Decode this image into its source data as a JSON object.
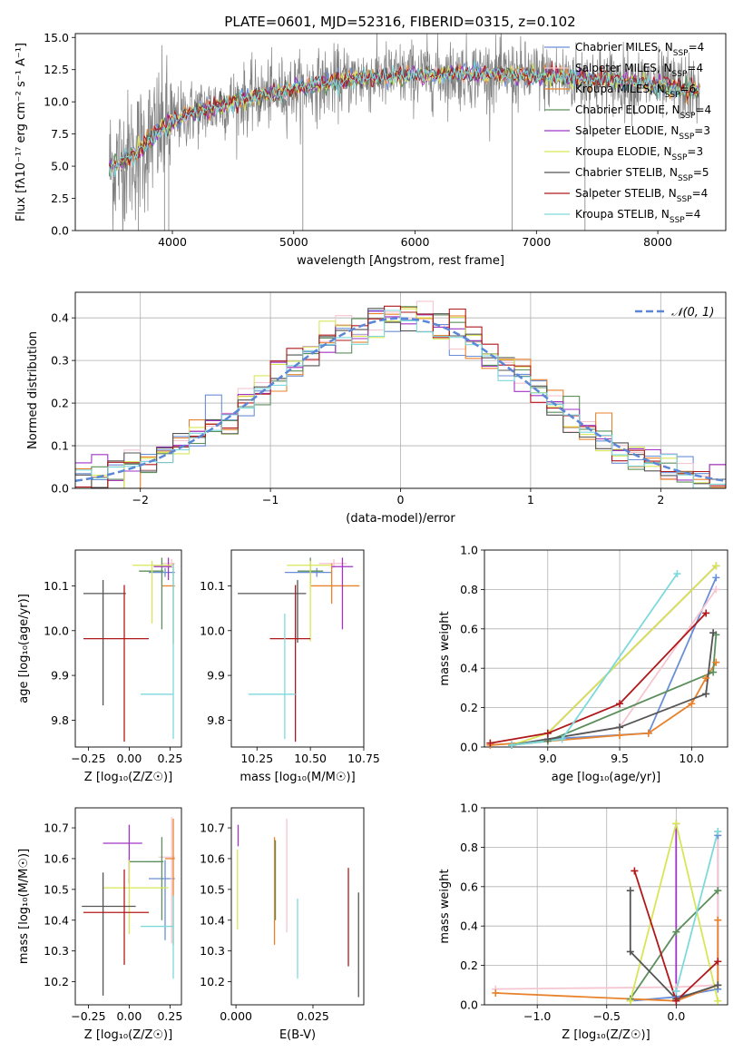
{
  "figure_title": "PLATE=0601, MJD=52316, FIBERID=0315, z=0.102",
  "models": [
    {
      "name": "Chabrier MILES",
      "nssp": "4",
      "color": "#6a8fd6"
    },
    {
      "name": "Salpeter MILES",
      "nssp": "4",
      "color": "#f5c6d0"
    },
    {
      "name": "Kroupa MILES",
      "nssp": "6",
      "color": "#e8822c"
    },
    {
      "name": "Chabrier ELODIE",
      "nssp": "4",
      "color": "#5c8f5c"
    },
    {
      "name": "Salpeter ELODIE",
      "nssp": "3",
      "color": "#a035c4"
    },
    {
      "name": "Kroupa ELODIE",
      "nssp": "3",
      "color": "#d8e656"
    },
    {
      "name": "Chabrier STELIB",
      "nssp": "5",
      "color": "#555555"
    },
    {
      "name": "Salpeter STELIB",
      "nssp": "4",
      "color": "#b0191c"
    },
    {
      "name": "Kroupa STELIB",
      "nssp": "4",
      "color": "#7ed9dc"
    }
  ],
  "chart_data": [
    {
      "id": "spectrum",
      "type": "line",
      "xlabel": "wavelength [Angstrom, rest frame]",
      "ylabel": "Flux [fλ10⁻¹⁷ erg cm⁻² s⁻¹ A⁻¹]",
      "xlim": [
        3200,
        8560
      ],
      "ylim": [
        0,
        15.3
      ],
      "xticks": [
        4000,
        5000,
        6000,
        7000,
        8000
      ],
      "yticks": [
        0.0,
        2.5,
        5.0,
        7.5,
        10.0,
        12.5,
        15.0
      ],
      "data_color": "#808080",
      "data_trend": {
        "x": [
          3500,
          3700,
          3900,
          4100,
          4300,
          4600,
          5000,
          5500,
          6000,
          6500,
          7000,
          7400,
          7800,
          8100,
          8350
        ],
        "y": [
          5.0,
          6.0,
          7.8,
          9.0,
          9.5,
          10.2,
          11.0,
          11.8,
          12.1,
          12.2,
          12.0,
          11.8,
          11.5,
          11.2,
          10.8
        ]
      },
      "legend": "upper right"
    },
    {
      "id": "residual-histogram",
      "type": "step",
      "xlabel": "(data-model)/error",
      "ylabel": "Normed distribution",
      "xlim": [
        -2.5,
        2.5
      ],
      "ylim": [
        0,
        0.46
      ],
      "xticks": [
        -2,
        -1,
        0,
        1,
        2
      ],
      "yticks": [
        0.0,
        0.1,
        0.2,
        0.3,
        0.4
      ],
      "grid": true,
      "bins": 40,
      "reference_label": "𝒩(0, 1)",
      "reference_color": "#5b87d6",
      "legend": "upper right"
    },
    {
      "id": "age-vs-Z",
      "type": "errorbar",
      "xlabel": "Z [log₁₀(Z/Z☉)]",
      "ylabel": "age  [log₁₀(age/yr)]",
      "xlim": [
        -0.33,
        0.32
      ],
      "ylim": [
        9.74,
        10.18
      ],
      "xticks": [
        -0.25,
        0.0,
        0.25
      ],
      "xticklabels": [
        "−0.25",
        "0.00",
        "0.25"
      ],
      "yticks": [
        9.8,
        9.9,
        10.0,
        10.1
      ],
      "points": [
        {
          "model": 0,
          "x": 0.22,
          "xerr": [
            0.1,
            0.06
          ],
          "y": 10.13,
          "yerr": [
            0.01,
            0.01
          ]
        },
        {
          "model": 1,
          "x": 0.26,
          "xerr": [
            0.06,
            0.02
          ],
          "y": 10.15,
          "yerr": [
            0.01,
            0.01
          ]
        },
        {
          "model": 2,
          "x": 0.27,
          "xerr": [
            0.07,
            0.01
          ],
          "y": 10.1,
          "yerr": [
            0.13,
            0.05
          ]
        },
        {
          "model": 3,
          "x": 0.2,
          "xerr": [
            0.14,
            0.01
          ],
          "y": 10.133,
          "yerr": [
            0.13,
            0.03
          ]
        },
        {
          "model": 4,
          "x": 0.24,
          "xerr": [
            0.09,
            0.02
          ],
          "y": 10.143,
          "yerr": [
            0.03,
            0.02
          ]
        },
        {
          "model": 5,
          "x": 0.14,
          "xerr": [
            0.12,
            0.12
          ],
          "y": 10.146,
          "yerr": [
            0.13,
            0.01
          ]
        },
        {
          "model": 6,
          "x": -0.16,
          "xerr": [
            0.12,
            0.14
          ],
          "y": 10.083,
          "yerr": [
            0.25,
            0.03
          ]
        },
        {
          "model": 7,
          "x": -0.03,
          "xerr": [
            0.25,
            0.15
          ],
          "y": 9.982,
          "yerr": [
            0.23,
            0.12
          ]
        },
        {
          "model": 8,
          "x": 0.27,
          "xerr": [
            0.2,
            0.0
          ],
          "y": 9.858,
          "yerr": [
            0.1,
            0.29
          ]
        }
      ]
    },
    {
      "id": "age-vs-mass",
      "type": "errorbar",
      "xlabel": "mass [log₁₀(M/M☉)]",
      "ylabel": "",
      "xlim": [
        10.13,
        10.75
      ],
      "ylim": [
        9.74,
        10.18
      ],
      "xticks": [
        10.25,
        10.5,
        10.75
      ],
      "xticklabels": [
        "10.25",
        "10.50",
        "10.75"
      ],
      "yticks": [
        9.8,
        9.9,
        10.0,
        10.1
      ],
      "points": [
        {
          "model": 0,
          "x": 10.53,
          "xerr": [
            0.15,
            0.07
          ],
          "y": 10.13,
          "yerr": [
            0.01,
            0.01
          ]
        },
        {
          "model": 1,
          "x": 10.61,
          "xerr": [
            0.07,
            0.06
          ],
          "y": 10.15,
          "yerr": [
            0.01,
            0.01
          ]
        },
        {
          "model": 2,
          "x": 10.6,
          "xerr": [
            0.1,
            0.13
          ],
          "y": 10.1,
          "yerr": [
            0.04,
            0.05
          ]
        },
        {
          "model": 3,
          "x": 10.5,
          "xerr": [
            0.06,
            0.06
          ],
          "y": 10.133,
          "yerr": [
            0.03,
            0.03
          ]
        },
        {
          "model": 4,
          "x": 10.65,
          "xerr": [
            0.05,
            0.05
          ],
          "y": 10.143,
          "yerr": [
            0.14,
            0.02
          ]
        },
        {
          "model": 5,
          "x": 10.5,
          "xerr": [
            0.11,
            0.1
          ],
          "y": 10.146,
          "yerr": [
            0.17,
            0.01
          ]
        },
        {
          "model": 6,
          "x": 10.44,
          "xerr": [
            0.28,
            0.04
          ],
          "y": 10.083,
          "yerr": [
            0.11,
            0.03
          ]
        },
        {
          "model": 7,
          "x": 10.43,
          "xerr": [
            0.12,
            0.07
          ],
          "y": 9.982,
          "yerr": [
            0.23,
            0.12
          ]
        },
        {
          "model": 8,
          "x": 10.38,
          "xerr": [
            0.17,
            0.05
          ],
          "y": 9.858,
          "yerr": [
            0.1,
            0.18
          ]
        }
      ]
    },
    {
      "id": "mass-weight-vs-age",
      "type": "line",
      "xlabel": "age  [log₁₀(age/yr)]",
      "ylabel": "mass weight",
      "xlim": [
        8.56,
        10.25
      ],
      "ylim": [
        0,
        1
      ],
      "xticks": [
        9.0,
        9.5,
        10.0
      ],
      "xticklabels": [
        "9.0",
        "9.5",
        "10.0"
      ],
      "yticks": [
        0.0,
        0.2,
        0.4,
        0.6,
        0.8,
        1.0
      ],
      "grid": true,
      "series": [
        {
          "model": 0,
          "x": [
            8.75,
            9.0,
            9.7,
            10.17
          ],
          "y": [
            0.01,
            0.04,
            0.07,
            0.86
          ]
        },
        {
          "model": 1,
          "x": [
            8.75,
            9.0,
            9.5,
            10.17
          ],
          "y": [
            0.01,
            0.04,
            0.1,
            0.8
          ]
        },
        {
          "model": 2,
          "x": [
            8.6,
            9.0,
            9.5,
            9.7,
            10.0,
            10.1,
            10.17
          ],
          "y": [
            0.01,
            0.03,
            0.06,
            0.07,
            0.22,
            0.35,
            0.43
          ]
        },
        {
          "model": 3,
          "x": [
            8.75,
            9.0,
            10.15,
            10.17
          ],
          "y": [
            0.01,
            0.03,
            0.38,
            0.57
          ]
        },
        {
          "model": 4,
          "x": [
            9.0,
            10.17
          ],
          "y": [
            0.07,
            0.92
          ]
        },
        {
          "model": 5,
          "x": [
            8.75,
            9.0,
            10.17
          ],
          "y": [
            0.01,
            0.07,
            0.92
          ]
        },
        {
          "model": 6,
          "x": [
            8.75,
            9.0,
            9.5,
            10.1,
            10.15
          ],
          "y": [
            0.01,
            0.04,
            0.1,
            0.27,
            0.58
          ]
        },
        {
          "model": 7,
          "x": [
            8.6,
            9.0,
            9.5,
            10.1
          ],
          "y": [
            0.02,
            0.07,
            0.22,
            0.68
          ]
        },
        {
          "model": 8,
          "x": [
            8.75,
            9.1,
            9.9
          ],
          "y": [
            0.01,
            0.04,
            0.88
          ]
        }
      ]
    },
    {
      "id": "mass-vs-Z",
      "type": "errorbar",
      "xlabel": "Z [log₁₀(Z/Z☉)]",
      "ylabel": "mass [log₁₀(M/M☉)]",
      "xlim": [
        -0.33,
        0.32
      ],
      "ylim": [
        10.125,
        10.765
      ],
      "xticks": [
        -0.25,
        0.0,
        0.25
      ],
      "xticklabels": [
        "−0.25",
        "0.00",
        "0.25"
      ],
      "yticks": [
        10.2,
        10.3,
        10.4,
        10.5,
        10.6,
        10.7
      ],
      "points": [
        {
          "model": 0,
          "x": 0.22,
          "xerr": [
            0.1,
            0.06
          ],
          "y": 10.535,
          "yerr": [
            0.2,
            0.06
          ]
        },
        {
          "model": 1,
          "x": 0.26,
          "xerr": [
            0.08,
            0.02
          ],
          "y": 10.605,
          "yerr": [
            0.28,
            0.13
          ]
        },
        {
          "model": 2,
          "x": 0.27,
          "xerr": [
            0.05,
            0.01
          ],
          "y": 10.6,
          "yerr": [
            0.28,
            0.13
          ]
        },
        {
          "model": 3,
          "x": 0.2,
          "xerr": [
            0.2,
            0.01
          ],
          "y": 10.59,
          "yerr": [
            0.19,
            0.08
          ]
        },
        {
          "model": 4,
          "x": 0.0,
          "xerr": [
            0.16,
            0.08
          ],
          "y": 10.65,
          "yerr": [
            0.13,
            0.06
          ]
        },
        {
          "model": 5,
          "x": 0.0,
          "xerr": [
            0.16,
            0.24
          ],
          "y": 10.505,
          "yerr": [
            0.15,
            0.09
          ]
        },
        {
          "model": 6,
          "x": -0.16,
          "xerr": [
            0.13,
            0.2
          ],
          "y": 10.445,
          "yerr": [
            0.29,
            0.11
          ]
        },
        {
          "model": 7,
          "x": -0.03,
          "xerr": [
            0.25,
            0.15
          ],
          "y": 10.425,
          "yerr": [
            0.17,
            0.14
          ]
        },
        {
          "model": 8,
          "x": 0.27,
          "xerr": [
            0.2,
            0.0
          ],
          "y": 10.38,
          "yerr": [
            0.17,
            0.1
          ]
        }
      ]
    },
    {
      "id": "mass-vs-EBV",
      "type": "errorbar",
      "xlabel": "E(B-V)",
      "ylabel": "",
      "xlim": [
        -0.0015,
        0.0415
      ],
      "ylim": [
        10.125,
        10.765
      ],
      "xticks": [
        0.0,
        0.025
      ],
      "xticklabels": [
        "0.000",
        "0.025"
      ],
      "yticks": [
        10.2,
        10.3,
        10.4,
        10.5,
        10.6,
        10.7
      ],
      "points": [
        {
          "model": 4,
          "x": 0.0007,
          "y": 10.66,
          "yerr": [
            0.02,
            0.05
          ]
        },
        {
          "model": 5,
          "x": 0.0005,
          "y": 10.5,
          "yerr": [
            0.13,
            0.13
          ]
        },
        {
          "model": 2,
          "x": 0.0125,
          "y": 10.5,
          "yerr": [
            0.18,
            0.17
          ]
        },
        {
          "model": 3,
          "x": 0.0128,
          "y": 10.52,
          "yerr": [
            0.12,
            0.14
          ]
        },
        {
          "model": 1,
          "x": 0.0165,
          "y": 10.6,
          "yerr": [
            0.24,
            0.13
          ]
        },
        {
          "model": 8,
          "x": 0.02,
          "y": 10.34,
          "yerr": [
            0.13,
            0.13
          ]
        },
        {
          "model": 7,
          "x": 0.0365,
          "y": 10.41,
          "yerr": [
            0.16,
            0.16
          ]
        },
        {
          "model": 6,
          "x": 0.0398,
          "y": 10.32,
          "yerr": [
            0.17,
            0.17
          ]
        }
      ]
    },
    {
      "id": "mass-weight-vs-Z",
      "type": "line",
      "xlabel": "Z [log₁₀(Z/Z☉)]",
      "ylabel": "mass weight",
      "xlim": [
        -1.38,
        0.37
      ],
      "ylim": [
        0,
        1
      ],
      "xticks": [
        -1.0,
        -0.5,
        0.0
      ],
      "xticklabels": [
        "−1.0",
        "−0.5",
        "0.0"
      ],
      "yticks": [
        0.0,
        0.2,
        0.4,
        0.6,
        0.8,
        1.0
      ],
      "grid": true,
      "series": [
        {
          "model": 0,
          "x": [
            -0.33,
            0.0,
            0.3,
            0.3
          ],
          "y": [
            0.02,
            0.04,
            0.08,
            0.86
          ]
        },
        {
          "model": 1,
          "x": [
            -1.3,
            0.0,
            0.3,
            0.3
          ],
          "y": [
            0.08,
            0.09,
            0.1,
            0.88
          ]
        },
        {
          "model": 2,
          "x": [
            -1.3,
            -0.33,
            0.0,
            0.3,
            0.3
          ],
          "y": [
            0.06,
            0.03,
            0.02,
            0.1,
            0.43
          ]
        },
        {
          "model": 3,
          "x": [
            -0.33,
            0.0,
            0.3
          ],
          "y": [
            0.03,
            0.37,
            0.58
          ]
        },
        {
          "model": 4,
          "x": [
            0.0,
            0.0
          ],
          "y": [
            0.07,
            0.92
          ]
        },
        {
          "model": 5,
          "x": [
            -0.33,
            0.0,
            0.3
          ],
          "y": [
            0.02,
            0.92,
            0.02
          ]
        },
        {
          "model": 6,
          "x": [
            -0.33,
            -0.33,
            0.0,
            0.3
          ],
          "y": [
            0.58,
            0.27,
            0.03,
            0.1
          ]
        },
        {
          "model": 7,
          "x": [
            -0.3,
            0.0,
            0.3
          ],
          "y": [
            0.68,
            0.02,
            0.22
          ]
        },
        {
          "model": 8,
          "x": [
            0.0,
            0.3
          ],
          "y": [
            0.07,
            0.88
          ]
        }
      ]
    }
  ]
}
